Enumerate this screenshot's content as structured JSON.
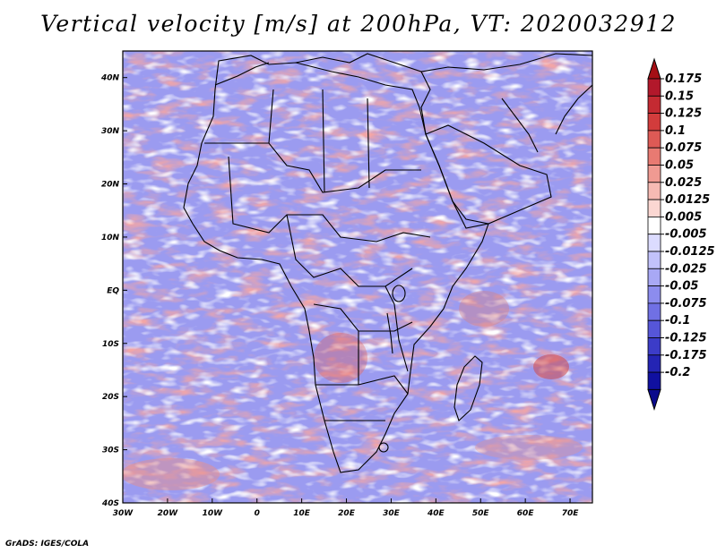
{
  "title": "Vertical velocity [m/s] at 200hPa, VT: 2020032912",
  "footer": "GrADS: IGES/COLA",
  "map": {
    "lon_range": [
      -30,
      75
    ],
    "lat_range": [
      -40,
      45
    ],
    "lat_ticks": [
      {
        "value": 40,
        "label": "40N"
      },
      {
        "value": 30,
        "label": "30N"
      },
      {
        "value": 20,
        "label": "20N"
      },
      {
        "value": 10,
        "label": "10N"
      },
      {
        "value": 0,
        "label": "EQ"
      },
      {
        "value": -10,
        "label": "10S"
      },
      {
        "value": -20,
        "label": "20S"
      },
      {
        "value": -30,
        "label": "30S"
      },
      {
        "value": -40,
        "label": "40S"
      }
    ],
    "lon_ticks": [
      {
        "value": -30,
        "label": "30W"
      },
      {
        "value": -20,
        "label": "20W"
      },
      {
        "value": -10,
        "label": "10W"
      },
      {
        "value": 0,
        "label": "0"
      },
      {
        "value": 10,
        "label": "10E"
      },
      {
        "value": 20,
        "label": "20E"
      },
      {
        "value": 30,
        "label": "30E"
      },
      {
        "value": 40,
        "label": "40E"
      },
      {
        "value": 50,
        "label": "50E"
      },
      {
        "value": 60,
        "label": "60E"
      },
      {
        "value": 70,
        "label": "70E"
      }
    ]
  },
  "colorbar": {
    "levels": [
      {
        "label": "0.175",
        "color": "#b2182b"
      },
      {
        "label": "0.15",
        "color": "#c42a32"
      },
      {
        "label": "0.125",
        "color": "#d23c3c"
      },
      {
        "label": "0.1",
        "color": "#de5a55"
      },
      {
        "label": "0.075",
        "color": "#e87a72"
      },
      {
        "label": "0.05",
        "color": "#f09a92"
      },
      {
        "label": "0.025",
        "color": "#f6bab3"
      },
      {
        "label": "0.0125",
        "color": "#fbd7d2"
      },
      {
        "label": "0.005",
        "color": "#ffffff"
      },
      {
        "label": "-0.005",
        "color": "#dcdcff"
      },
      {
        "label": "-0.0125",
        "color": "#c2c2fb"
      },
      {
        "label": "-0.025",
        "color": "#a8a8f5"
      },
      {
        "label": "-0.05",
        "color": "#8c8cee"
      },
      {
        "label": "-0.075",
        "color": "#7070e4"
      },
      {
        "label": "-0.1",
        "color": "#5656d8"
      },
      {
        "label": "-0.125",
        "color": "#3c3cc8"
      },
      {
        "label": "-0.175",
        "color": "#2424b4"
      },
      {
        "label": "-0.2",
        "color": "#1010a0"
      }
    ],
    "top_color": "#a50f15",
    "bottom_color": "#0a0a8c"
  }
}
